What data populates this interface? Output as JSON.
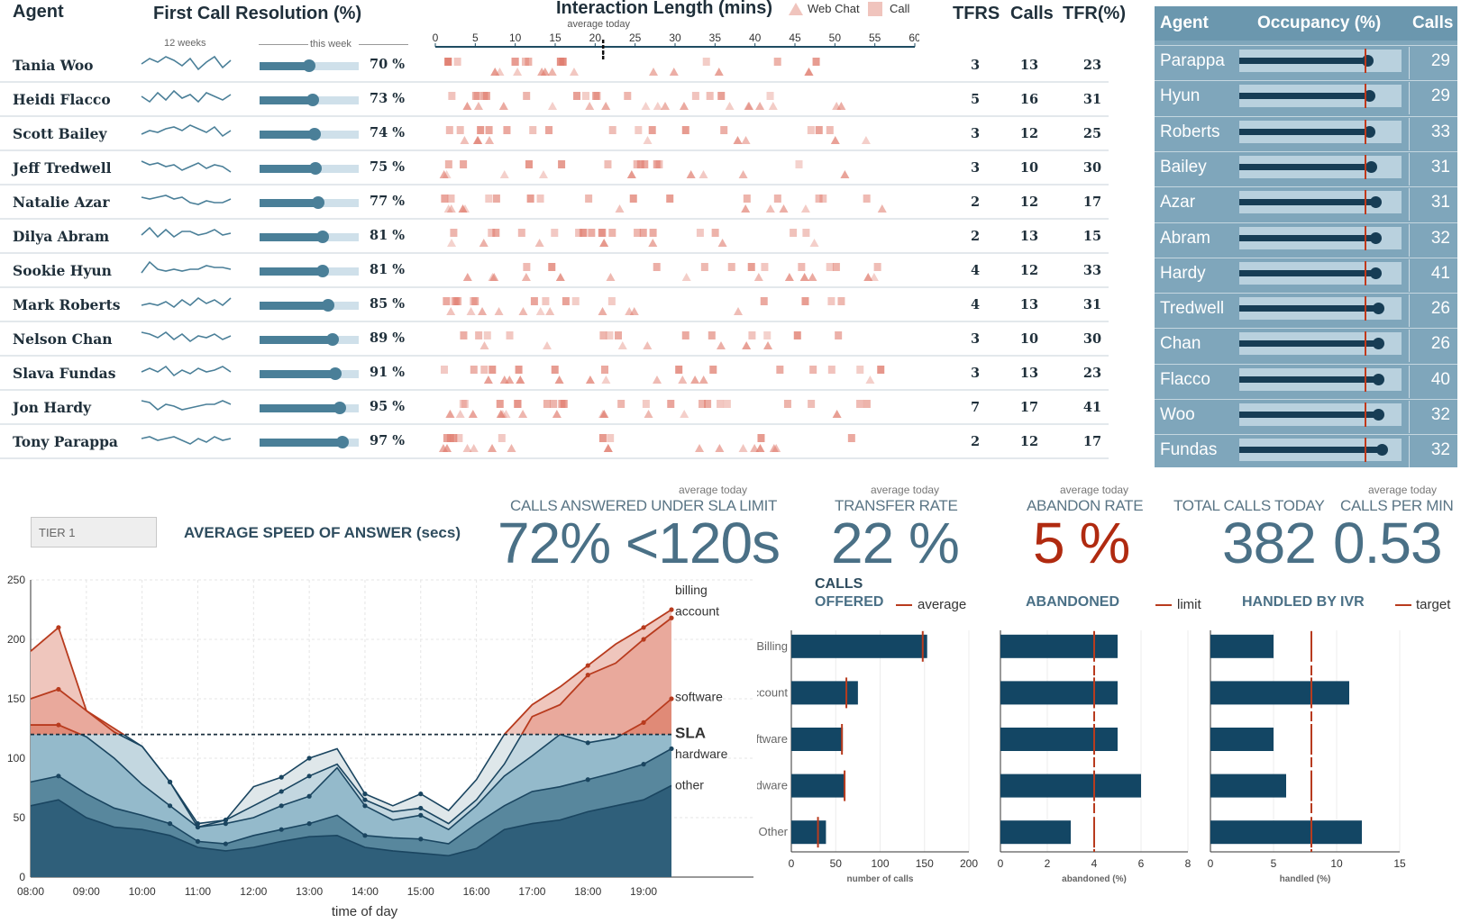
{
  "header": {
    "agent": "Agent",
    "fcr": "First Call Resolution (%)",
    "weeks12": "12 weeks",
    "this_week": "this week",
    "interaction": "Interaction Length (mins)",
    "average_today": "average today",
    "legend_web_chat": "Web Chat",
    "legend_call": "Call",
    "tfrs": "TFRS",
    "calls": "Calls",
    "tfr_pct": "TFR(%)"
  },
  "interaction_axis": {
    "ticks": [
      "0",
      "5",
      "10",
      "15",
      "20",
      "25",
      "30",
      "35",
      "40",
      "45",
      "50",
      "55",
      "60"
    ],
    "min": 0,
    "max": 60,
    "average_today": 21
  },
  "agents": [
    {
      "name": "Tania Woo",
      "fcr": 70,
      "fcr_label": "70 %",
      "tfrs": "3",
      "calls": "13",
      "tfr": "23",
      "spark": [
        5,
        8,
        6,
        9,
        7,
        4,
        8,
        2,
        6,
        9,
        3,
        7
      ]
    },
    {
      "name": "Heidi Flacco",
      "fcr": 73,
      "fcr_label": "73 %",
      "tfrs": "5",
      "calls": "16",
      "tfr": "31",
      "spark": [
        6,
        3,
        8,
        4,
        9,
        5,
        7,
        3,
        8,
        6,
        4,
        7
      ]
    },
    {
      "name": "Scott Bailey",
      "fcr": 74,
      "fcr_label": "74 %",
      "tfrs": "3",
      "calls": "12",
      "tfr": "25",
      "spark": [
        4,
        6,
        5,
        7,
        8,
        6,
        9,
        7,
        5,
        8,
        3,
        6
      ]
    },
    {
      "name": "Jeff Tredwell",
      "fcr": 75,
      "fcr_label": "75 %",
      "tfrs": "3",
      "calls": "10",
      "tfr": "30",
      "spark": [
        8,
        6,
        7,
        5,
        6,
        3,
        5,
        7,
        4,
        6,
        5,
        2
      ]
    },
    {
      "name": "Natalie Azar",
      "fcr": 77,
      "fcr_label": "77 %",
      "tfrs": "2",
      "calls": "12",
      "tfr": "17",
      "spark": [
        7,
        6,
        7,
        8,
        6,
        7,
        4,
        3,
        5,
        4,
        4,
        6
      ]
    },
    {
      "name": "Dilya Abram",
      "fcr": 81,
      "fcr_label": "81 %",
      "tfrs": "2",
      "calls": "13",
      "tfr": "15",
      "spark": [
        5,
        9,
        4,
        8,
        4,
        7,
        7,
        5,
        6,
        8,
        5,
        6
      ]
    },
    {
      "name": "Sookie Hyun",
      "fcr": 81,
      "fcr_label": "81 %",
      "tfrs": "4",
      "calls": "12",
      "tfr": "33",
      "spark": [
        3,
        9,
        5,
        4,
        5,
        4,
        5,
        5,
        7,
        6,
        6,
        5
      ]
    },
    {
      "name": "Mark Roberts",
      "fcr": 85,
      "fcr_label": "85 %",
      "tfrs": "4",
      "calls": "13",
      "tfr": "31",
      "spark": [
        4,
        5,
        4,
        6,
        3,
        7,
        4,
        8,
        5,
        7,
        4,
        8
      ]
    },
    {
      "name": "Nelson Chan",
      "fcr": 89,
      "fcr_label": "89 %",
      "tfrs": "3",
      "calls": "10",
      "tfr": "30",
      "spark": [
        8,
        7,
        5,
        8,
        4,
        7,
        3,
        6,
        5,
        7,
        4,
        6
      ]
    },
    {
      "name": "Slava Fundas",
      "fcr": 91,
      "fcr_label": "91 %",
      "tfrs": "3",
      "calls": "13",
      "tfr": "23",
      "spark": [
        5,
        7,
        5,
        8,
        3,
        6,
        4,
        7,
        5,
        6,
        8,
        5
      ]
    },
    {
      "name": "Jon Hardy",
      "fcr": 95,
      "fcr_label": "95 %",
      "tfrs": "7",
      "calls": "17",
      "tfr": "41",
      "spark": [
        8,
        7,
        3,
        6,
        5,
        3,
        4,
        5,
        6,
        6,
        8,
        6
      ]
    },
    {
      "name": "Tony Parappa",
      "fcr": 97,
      "fcr_label": "97 %",
      "tfrs": "2",
      "calls": "12",
      "tfr": "17",
      "spark": [
        6,
        7,
        5,
        6,
        7,
        5,
        3,
        6,
        4,
        7,
        5,
        6
      ]
    }
  ],
  "occupancy": {
    "headers": {
      "agent": "Agent",
      "occupancy": "Occupancy (%)",
      "calls": "Calls"
    },
    "target_pct": 88,
    "rows": [
      {
        "name": "Parappa",
        "occ": 89,
        "calls": "29"
      },
      {
        "name": "Hyun",
        "occ": 90,
        "calls": "29"
      },
      {
        "name": "Roberts",
        "occ": 90,
        "calls": "33"
      },
      {
        "name": "Bailey",
        "occ": 91,
        "calls": "31"
      },
      {
        "name": "Azar",
        "occ": 93,
        "calls": "31"
      },
      {
        "name": "Abram",
        "occ": 93,
        "calls": "32"
      },
      {
        "name": "Hardy",
        "occ": 93,
        "calls": "41"
      },
      {
        "name": "Tredwell",
        "occ": 94,
        "calls": "26"
      },
      {
        "name": "Chan",
        "occ": 94,
        "calls": "26"
      },
      {
        "name": "Flacco",
        "occ": 94,
        "calls": "40"
      },
      {
        "name": "Woo",
        "occ": 94,
        "calls": "32"
      },
      {
        "name": "Fundas",
        "occ": 96,
        "calls": "32"
      }
    ]
  },
  "tier_select": {
    "value": "TIER 1"
  },
  "asa_title": "AVERAGE SPEED OF ANSWER (secs)",
  "kpis": {
    "sla": {
      "avg": "average today",
      "label": "CALLS ANSWERED UNDER SLA LIMIT",
      "value": "72% <120s"
    },
    "transfer": {
      "avg": "average today",
      "label": "TRANSFER RATE",
      "value": "22 %"
    },
    "abandon": {
      "avg": "average today",
      "label": "ABANDON RATE",
      "value": "5 %"
    },
    "total": {
      "label": "TOTAL CALLS TODAY",
      "value": "382"
    },
    "cpm": {
      "avg": "average today",
      "label": "CALLS PER MIN",
      "value": "0.53"
    }
  },
  "area_labels": {
    "billing": "billing",
    "account": "account",
    "software": "software",
    "sla": "SLA",
    "hardware": "hardware",
    "other": "other",
    "xlabel": "time of day"
  },
  "bar_sections": {
    "calls_offered_1": "CALLS",
    "calls_offered_2": "OFFERED",
    "average": "average",
    "abandoned": "ABANDONED",
    "limit": "limit",
    "ivr": "HANDLED BY IVR",
    "target": "target"
  },
  "colors": {
    "navy": "#134664",
    "teal": "#4a7f98",
    "red": "#b83b1e",
    "pink": "#e8a79d",
    "panel": "#7fa6bb"
  },
  "chart_data": [
    {
      "type": "area",
      "title": "AVERAGE SPEED OF ANSWER (secs)",
      "xlabel": "time of day",
      "x": [
        "08:00",
        "08:30",
        "09:00",
        "09:30",
        "10:00",
        "10:30",
        "11:00",
        "11:30",
        "12:00",
        "12:30",
        "13:00",
        "13:30",
        "14:00",
        "14:30",
        "15:00",
        "15:30",
        "16:00",
        "16:30",
        "17:00",
        "17:30",
        "18:00",
        "18:30",
        "19:00",
        "19:30"
      ],
      "ylim": [
        0,
        250
      ],
      "yticks": [
        "0",
        "50",
        "100",
        "150",
        "200",
        "250"
      ],
      "xticks": [
        "08:00",
        "09:00",
        "10:00",
        "11:00",
        "12:00",
        "13:00",
        "14:00",
        "15:00",
        "16:00",
        "17:00",
        "18:00",
        "19:00"
      ],
      "sla": 120,
      "series": [
        {
          "name": "other",
          "values": [
            60,
            65,
            50,
            42,
            40,
            35,
            25,
            22,
            25,
            30,
            34,
            35,
            25,
            22,
            20,
            18,
            24,
            40,
            45,
            48,
            55,
            60,
            65,
            77
          ]
        },
        {
          "name": "hardware",
          "values": [
            80,
            85,
            70,
            58,
            52,
            45,
            30,
            28,
            35,
            40,
            45,
            52,
            35,
            33,
            32,
            28,
            45,
            60,
            72,
            76,
            82,
            88,
            95,
            108
          ]
        },
        {
          "name": "software",
          "values": [
            128,
            128,
            118,
            100,
            78,
            60,
            42,
            45,
            50,
            60,
            68,
            92,
            60,
            48,
            52,
            40,
            60,
            85,
            102,
            120,
            113,
            117,
            130,
            150
          ]
        },
        {
          "name": "account",
          "values": [
            150,
            158,
            140,
            125,
            110,
            80,
            42,
            48,
            60,
            72,
            85,
            95,
            65,
            55,
            58,
            45,
            65,
            95,
            135,
            145,
            170,
            180,
            200,
            218
          ]
        },
        {
          "name": "billing",
          "values": [
            190,
            210,
            140,
            122,
            110,
            80,
            45,
            48,
            76,
            84,
            100,
            108,
            70,
            60,
            70,
            56,
            82,
            120,
            145,
            160,
            178,
            196,
            210,
            225
          ]
        }
      ]
    },
    {
      "type": "bar",
      "title": "CALLS OFFERED",
      "categories": [
        "Billing",
        "Account",
        "Software",
        "Hardware",
        "Other"
      ],
      "values": [
        153,
        75,
        58,
        60,
        39
      ],
      "xlim": [
        0,
        200
      ],
      "xticks": [
        "0",
        "50",
        "100",
        "150",
        "200"
      ],
      "xlabel": "number of calls",
      "reference": {
        "name": "average",
        "values": [
          148,
          62,
          57,
          60,
          30
        ]
      }
    },
    {
      "type": "bar",
      "title": "ABANDONED",
      "categories": [
        "Billing",
        "Account",
        "Software",
        "Hardware",
        "Other"
      ],
      "values": [
        5,
        5,
        5,
        6,
        3
      ],
      "xlim": [
        0,
        8
      ],
      "xticks": [
        "0",
        "2",
        "4",
        "6",
        "8"
      ],
      "xlabel": "abandoned (%)",
      "reference": {
        "name": "limit",
        "values": [
          4,
          4,
          4,
          4,
          4
        ]
      }
    },
    {
      "type": "bar",
      "title": "HANDLED BY IVR",
      "categories": [
        "Billing",
        "Account",
        "Software",
        "Hardware",
        "Other"
      ],
      "values": [
        5,
        11,
        5,
        6,
        12
      ],
      "xlim": [
        0,
        15
      ],
      "xticks": [
        "0",
        "5",
        "10",
        "15"
      ],
      "xlabel": "handled (%)",
      "reference": {
        "name": "target",
        "values": [
          8,
          8,
          8,
          8,
          8
        ]
      }
    }
  ]
}
